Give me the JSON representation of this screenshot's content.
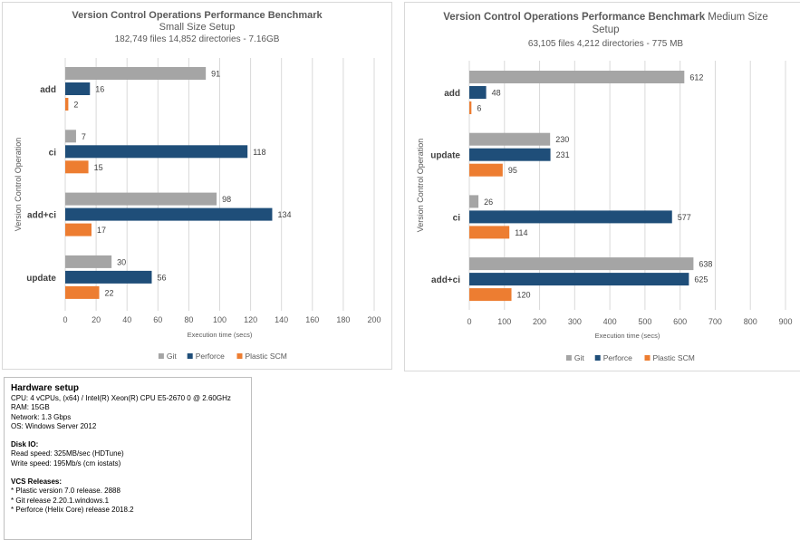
{
  "chart_data": [
    {
      "type": "bar",
      "orientation": "horizontal",
      "title": "Version Control Operations Performance Benchmark",
      "subtitle": "Small Size Setup",
      "subtitle2": "182,749 files 14,852 directories - 7.16GB",
      "categories": [
        "add",
        "ci",
        "add+ci",
        "update"
      ],
      "series": [
        {
          "name": "Git",
          "color": "#a5a5a5",
          "values": [
            91,
            7,
            98,
            30
          ]
        },
        {
          "name": "Perforce",
          "color": "#1f4e79",
          "values": [
            16,
            118,
            134,
            56
          ]
        },
        {
          "name": "Plastic SCM",
          "color": "#ed7d31",
          "values": [
            2,
            15,
            17,
            22
          ]
        }
      ],
      "xlabel": "Execution time (secs)",
      "ylabel": "Version Control Operation",
      "xlim": [
        0,
        200
      ],
      "xticks": [
        "0",
        "20",
        "40",
        "60",
        "80",
        "100",
        "120",
        "140",
        "160",
        "180",
        "200"
      ],
      "grid": true,
      "legend": "bottom"
    },
    {
      "type": "bar",
      "orientation": "horizontal",
      "title": "Version Control Operations Performance Benchmark",
      "subtitle": "Medium Size Setup",
      "subtitle2": "63,105 files 4,212 directories - 775 MB",
      "categories": [
        "add",
        "update",
        "ci",
        "add+ci"
      ],
      "series": [
        {
          "name": "Git",
          "color": "#a5a5a5",
          "values": [
            612,
            230,
            26,
            638
          ]
        },
        {
          "name": "Perforce",
          "color": "#1f4e79",
          "values": [
            48,
            231,
            577,
            625
          ]
        },
        {
          "name": "Plastic SCM",
          "color": "#ed7d31",
          "values": [
            6,
            95,
            114,
            120
          ]
        }
      ],
      "xlabel": "Execution time (secs)",
      "ylabel": "Version Control Operation",
      "xlim": [
        0,
        900
      ],
      "xticks": [
        "0",
        "100",
        "200",
        "300",
        "400",
        "500",
        "600",
        "700",
        "800",
        "900"
      ],
      "grid": true,
      "legend": "bottom"
    }
  ],
  "charts": {
    "left": {
      "title_bold": "Version Control Operations Performance Benchmark",
      "subtitle": "Small Size Setup",
      "subtitle2": "182,749 files 14,852 directories - 7.16GB"
    },
    "right": {
      "title_bold": "Version Control Operations Performance Benchmark",
      "title_rest": " Medium Size",
      "subtitle": "Setup",
      "subtitle2": "63,105 files 4,212 directories - 775 MB"
    }
  },
  "hardware": {
    "title": "Hardware setup",
    "lines": [
      "CPU: 4 vCPUs, (x64) / Intel(R) Xeon(R) CPU E5-2670 0 @ 2.60GHz",
      "RAM: 15GB",
      "Network: 1.3 Gbps",
      "OS: Windows Server 2012"
    ],
    "disk_title": "Disk IO:",
    "disk_lines": [
      "Read speed: 325MB/sec (HDTune)",
      "Write speed: 195Mb/s (cm iostats)"
    ],
    "vcs_title": "VCS Releases:",
    "vcs_lines": [
      "* Plastic version 7.0 release. 2888",
      "* Git release 2.20.1.windows.1",
      "* Perforce (Helix Core) release 2018.2"
    ]
  }
}
